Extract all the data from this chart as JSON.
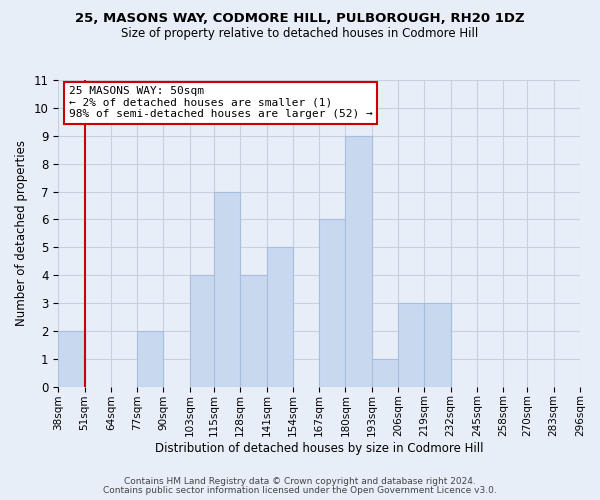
{
  "title": "25, MASONS WAY, CODMORE HILL, PULBOROUGH, RH20 1DZ",
  "subtitle": "Size of property relative to detached houses in Codmore Hill",
  "xlabel": "Distribution of detached houses by size in Codmore Hill",
  "ylabel": "Number of detached properties",
  "bin_edges": [
    38,
    51,
    64,
    77,
    90,
    103,
    115,
    128,
    141,
    154,
    167,
    180,
    193,
    206,
    219,
    232,
    245,
    258,
    270,
    283,
    296
  ],
  "bin_labels": [
    "38sqm",
    "51sqm",
    "64sqm",
    "77sqm",
    "90sqm",
    "103sqm",
    "115sqm",
    "128sqm",
    "141sqm",
    "154sqm",
    "167sqm",
    "180sqm",
    "193sqm",
    "206sqm",
    "219sqm",
    "232sqm",
    "245sqm",
    "258sqm",
    "270sqm",
    "283sqm",
    "296sqm"
  ],
  "counts": [
    2,
    0,
    0,
    2,
    0,
    4,
    7,
    4,
    5,
    0,
    6,
    9,
    1,
    3,
    3,
    0,
    0,
    0,
    0,
    0
  ],
  "bar_color": "#c8d8ef",
  "bar_edgecolor": "#a8bedd",
  "property_line_x": 51,
  "property_line_color": "#cc0000",
  "annotation_text_line1": "25 MASONS WAY: 50sqm",
  "annotation_text_line2": "← 2% of detached houses are smaller (1)",
  "annotation_text_line3": "98% of semi-detached houses are larger (52) →",
  "annotation_box_color": "#ffffff",
  "annotation_box_edgecolor": "#cc0000",
  "ylim": [
    0,
    11
  ],
  "yticks": [
    0,
    1,
    2,
    3,
    4,
    5,
    6,
    7,
    8,
    9,
    10,
    11
  ],
  "grid_color": "#c8d0e0",
  "bg_color": "#e8eef8",
  "footer_line1": "Contains HM Land Registry data © Crown copyright and database right 2024.",
  "footer_line2": "Contains public sector information licensed under the Open Government Licence v3.0."
}
